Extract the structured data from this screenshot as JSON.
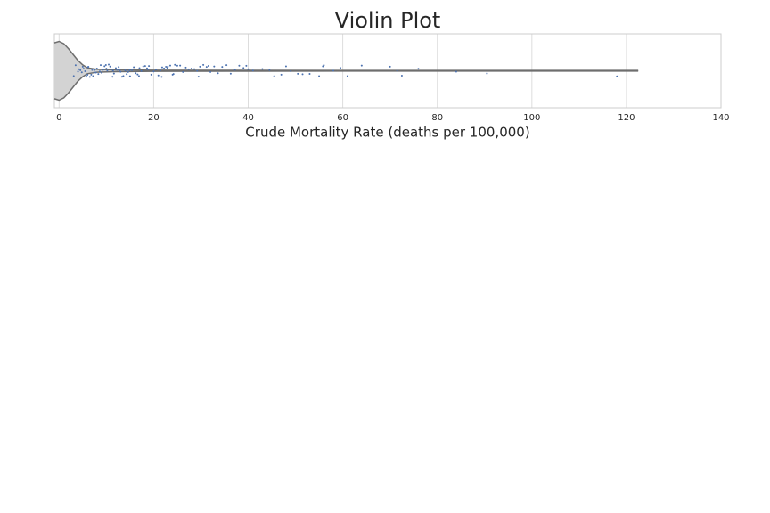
{
  "chart_data": {
    "type": "violin",
    "title": "Violin Plot",
    "xlabel": "Crude Mortality Rate (deaths per 100,000)",
    "xlim": [
      -1,
      140
    ],
    "xticks": [
      0,
      20,
      40,
      60,
      80,
      100,
      120,
      140
    ],
    "grid": true,
    "fill_color": "#d3d3d3",
    "point_color": "#4c72b0",
    "violin": {
      "x": [
        -1,
        0,
        1,
        2,
        3,
        4,
        5,
        6,
        8,
        12,
        20,
        40,
        80,
        122.5
      ],
      "width": [
        0.95,
        1,
        0.92,
        0.75,
        0.55,
        0.35,
        0.2,
        0.1,
        0.05,
        0.03,
        0.02,
        0.015,
        0.01,
        0.01
      ]
    },
    "values": [
      3.1,
      3.5,
      4,
      4.2,
      4.5,
      4.8,
      5,
      5.2,
      5.5,
      5.8,
      6,
      6.2,
      6.5,
      6.8,
      7,
      7.2,
      7.5,
      7.8,
      8,
      8.3,
      8.6,
      9,
      9.3,
      9.6,
      10,
      10.2,
      10.5,
      10.8,
      11,
      11.3,
      11.6,
      12,
      12.3,
      12.6,
      13,
      13.3,
      13.6,
      14,
      14.3,
      14.6,
      15,
      15.4,
      15.8,
      16.2,
      16.6,
      17,
      17.4,
      17.8,
      18.2,
      18.6,
      19,
      19.5,
      20,
      20.5,
      21,
      21.4,
      21.8,
      22.2,
      22.6,
      23,
      23.5,
      24,
      24.5,
      25,
      25.6,
      26.2,
      26.8,
      27.4,
      28,
      28.6,
      29.2,
      29.8,
      30.5,
      31.2,
      32,
      32.8,
      33.6,
      34.5,
      35.4,
      36.3,
      37.2,
      38.1,
      39,
      39.6,
      40,
      41,
      43,
      44.5,
      45.5,
      47,
      48,
      49,
      50.5,
      51.5,
      53,
      55,
      55.8,
      56,
      58,
      59.5,
      61,
      64,
      70,
      71.5,
      72.5,
      76,
      84,
      90.5,
      118,
      6.1,
      7.4,
      8.8,
      9.9,
      11.4,
      12.8,
      14.9,
      16.9,
      18.8,
      21.7,
      22.9,
      24.2,
      29.5,
      31.6
    ]
  }
}
